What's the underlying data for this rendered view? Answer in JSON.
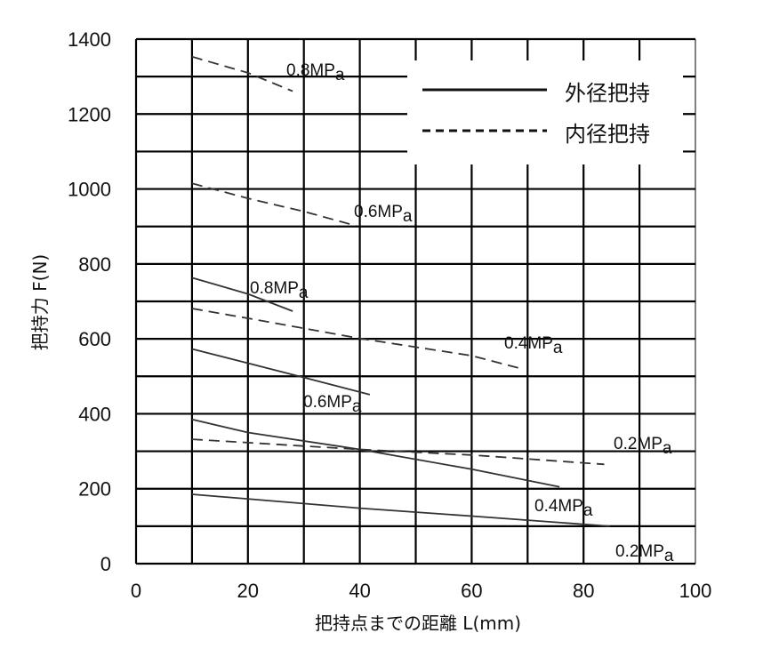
{
  "chart_data": {
    "type": "line",
    "title": "",
    "xlabel": "把持点までの距離 L(mm)",
    "ylabel": "把持力 F(N)",
    "xlim": [
      0,
      100
    ],
    "ylim": [
      0,
      1400
    ],
    "x_ticks": [
      "0",
      "20",
      "40",
      "60",
      "80",
      "100"
    ],
    "y_ticks": [
      "0",
      "200",
      "400",
      "600",
      "800",
      "1000",
      "1200",
      "1400"
    ],
    "grid": true,
    "legend": {
      "placement": "top-right",
      "entries": [
        {
          "label": "外径把持",
          "style": "solid"
        },
        {
          "label": "内径把持",
          "style": "dashed"
        }
      ]
    },
    "series": [
      {
        "name": "外径把持",
        "label": "0.8MPa",
        "style": "solid",
        "points": [
          [
            10,
            763
          ],
          [
            20,
            720
          ],
          [
            28,
            674
          ]
        ]
      },
      {
        "name": "外径把持",
        "label": "0.6MPa",
        "style": "solid",
        "points": [
          [
            10,
            573
          ],
          [
            20,
            535
          ],
          [
            30,
            497
          ],
          [
            41.8,
            451
          ]
        ]
      },
      {
        "name": "外径把持",
        "label": "0.4MPa",
        "style": "solid",
        "points": [
          [
            10,
            385
          ],
          [
            20,
            350
          ],
          [
            40,
            305
          ],
          [
            60,
            252
          ],
          [
            75.7,
            205
          ]
        ]
      },
      {
        "name": "外径把持",
        "label": "0.2MPa",
        "style": "solid",
        "points": [
          [
            10,
            185
          ],
          [
            40,
            148
          ],
          [
            60,
            127
          ],
          [
            84.7,
            100
          ]
        ]
      },
      {
        "name": "内径把持",
        "label": "0.8MPa",
        "style": "dashed",
        "points": [
          [
            10,
            1353
          ],
          [
            20,
            1310
          ],
          [
            28,
            1261
          ]
        ]
      },
      {
        "name": "内径把持",
        "label": "0.6MPa",
        "style": "dashed",
        "points": [
          [
            10,
            1015
          ],
          [
            20,
            975
          ],
          [
            30,
            940
          ],
          [
            39.3,
            902
          ]
        ]
      },
      {
        "name": "内径把持",
        "label": "0.4MPa",
        "style": "dashed",
        "points": [
          [
            10,
            681
          ],
          [
            20,
            655
          ],
          [
            40,
            601
          ],
          [
            60,
            555
          ],
          [
            69,
            520
          ]
        ]
      },
      {
        "name": "内径把持",
        "label": "0.2MPa",
        "style": "dashed",
        "points": [
          [
            10,
            332
          ],
          [
            40,
            305
          ],
          [
            60,
            290
          ],
          [
            83.7,
            265
          ]
        ]
      }
    ],
    "colors": {
      "line": "#333333",
      "grid": "#000000"
    }
  }
}
